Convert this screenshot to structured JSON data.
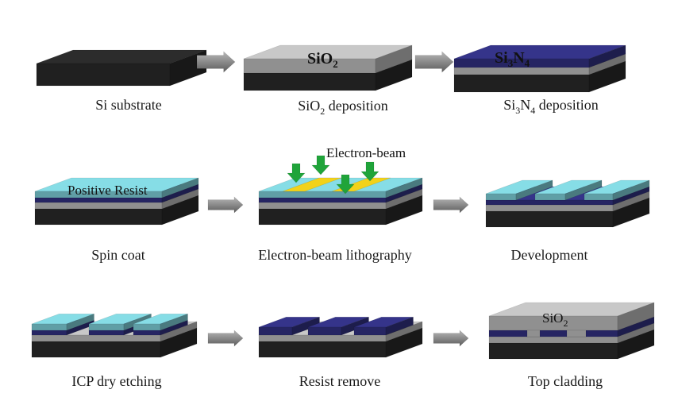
{
  "steps": [
    {
      "caption": "Si substrate"
    },
    {
      "caption_main": "SiO",
      "caption_sub": "2",
      "caption_tail": " deposition",
      "layer_label_main": "SiO",
      "layer_label_sub": "2"
    },
    {
      "caption_a": "Si",
      "caption_a_sub": "3",
      "caption_b": "N",
      "caption_b_sub": "4",
      "caption_tail": " deposition",
      "layer_label_a": "Si",
      "layer_label_a_sub": "3",
      "layer_label_b": "N",
      "layer_label_b_sub": "4"
    },
    {
      "caption": "Spin coat",
      "layer_label": "Positive Resist"
    },
    {
      "caption": "Electron-beam lithography",
      "beam_label": "Electron-beam"
    },
    {
      "caption": "Development"
    },
    {
      "caption": "ICP dry etching"
    },
    {
      "caption": "Resist remove"
    },
    {
      "caption": "Top cladding",
      "layer_label_main": "SiO",
      "layer_label_sub": "2"
    }
  ],
  "colors": {
    "silicon": "#2c2c2c",
    "sio2": "#c8c8c8",
    "si3n4": "#35348a",
    "resist": "#86dde6",
    "exposed": "#f2d21a",
    "beam_arrow": "#20a43a",
    "process_arrow": "#8a8a8a"
  }
}
